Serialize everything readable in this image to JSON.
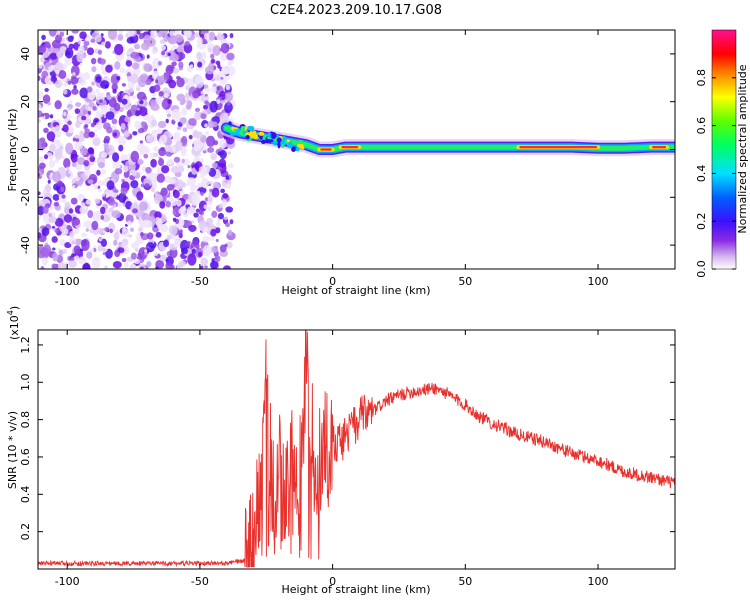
{
  "figure": {
    "title": "C2E4.2023.209.10.17.G08"
  },
  "chart_data": [
    {
      "type": "heatmap",
      "title": "C2E4.2023.209.10.17.G08",
      "xlabel": "Height of straight line (km)",
      "ylabel": "Frequency (Hz)",
      "xlim": [
        -111,
        129
      ],
      "ylim": [
        -50,
        50
      ],
      "xticks": [
        -100,
        -50,
        0,
        50,
        100
      ],
      "yticks": [
        -40,
        -20,
        0,
        20,
        40
      ],
      "xtick_labels": [
        "-100",
        "-50",
        "0",
        "50",
        "100"
      ],
      "ytick_labels": [
        "-40",
        "-20",
        "0",
        "20",
        "40"
      ],
      "grid": false,
      "noise_region": {
        "x_range": [
          -111,
          -38
        ],
        "y_range": [
          -50,
          50
        ]
      },
      "signal_ridge": {
        "x": [
          -40,
          -35,
          -30,
          -25,
          -20,
          -15,
          -10,
          -5,
          0,
          5,
          10,
          20,
          30,
          50,
          70,
          90,
          100,
          110,
          120,
          129
        ],
        "y": [
          9,
          7,
          6,
          5,
          4,
          3,
          2,
          0,
          0,
          1,
          1,
          1,
          1,
          1,
          1,
          1,
          0.5,
          0.5,
          1,
          1
        ]
      },
      "colorbar": {
        "label": "Normalized spectral amplitude",
        "range": [
          0.0,
          1.0
        ],
        "ticks": [
          0.0,
          0.2,
          0.4,
          0.6,
          0.8
        ],
        "tick_labels": [
          "0.0",
          "0.2",
          "0.4",
          "0.6",
          "0.8"
        ],
        "colormap": "rainbow (white→purple→blue→cyan→green→yellow→red→magenta)"
      }
    },
    {
      "type": "line",
      "title": "",
      "xlabel": "Height of straight line (km)",
      "ylabel": "SNR (10 * v/v)",
      "scale_label": "(x10",
      "scale_exponent": "4",
      "scale_suffix": ")",
      "xlim": [
        -111,
        129
      ],
      "ylim": [
        0,
        1.28
      ],
      "xticks": [
        -100,
        -50,
        0,
        50,
        100
      ],
      "yticks": [
        0.2,
        0.4,
        0.6,
        0.8,
        1.0,
        1.2
      ],
      "xtick_labels": [
        "-100",
        "-50",
        "0",
        "50",
        "100"
      ],
      "ytick_labels": [
        "0.2",
        "0.4",
        "0.6",
        "0.8",
        "1.0",
        "1.2"
      ],
      "grid": false,
      "series": [
        {
          "color": "#e8302d",
          "x": [
            -111,
            -100,
            -80,
            -60,
            -40,
            -35,
            -32,
            -30,
            -28,
            -26,
            -25,
            -24,
            -23,
            -22,
            -20,
            -18,
            -16,
            -15,
            -13,
            -11,
            -10,
            -9,
            -8,
            -7,
            -5,
            -3,
            -1,
            0,
            2,
            5,
            8,
            10,
            15,
            20,
            25,
            30,
            35,
            38,
            40,
            43,
            45,
            50,
            55,
            60,
            70,
            80,
            90,
            100,
            110,
            120,
            129
          ],
          "y": [
            0.03,
            0.03,
            0.03,
            0.03,
            0.03,
            0.04,
            0.05,
            0.12,
            0.35,
            0.62,
            1.04,
            0.5,
            0.78,
            0.4,
            0.58,
            0.3,
            0.62,
            0.5,
            0.48,
            0.6,
            1.28,
            0.65,
            0.9,
            0.55,
            0.62,
            0.68,
            0.6,
            0.72,
            0.66,
            0.72,
            0.76,
            0.8,
            0.84,
            0.9,
            0.93,
            0.95,
            0.96,
            0.97,
            0.96,
            0.94,
            0.92,
            0.88,
            0.82,
            0.78,
            0.72,
            0.68,
            0.62,
            0.58,
            0.52,
            0.49,
            0.46
          ]
        }
      ]
    }
  ]
}
